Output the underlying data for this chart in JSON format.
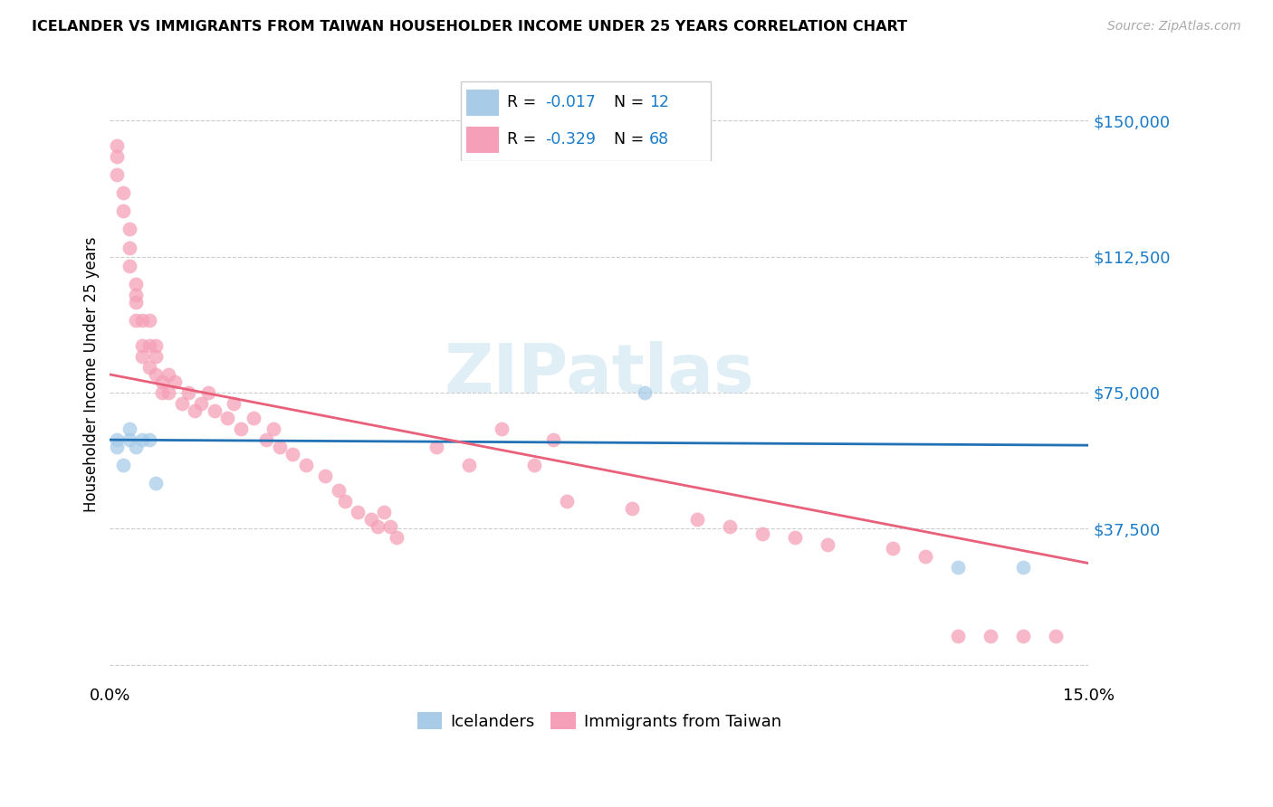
{
  "title": "ICELANDER VS IMMIGRANTS FROM TAIWAN HOUSEHOLDER INCOME UNDER 25 YEARS CORRELATION CHART",
  "source": "Source: ZipAtlas.com",
  "ylabel": "Householder Income Under 25 years",
  "blue_color": "#a8cce8",
  "pink_color": "#f5a0b8",
  "blue_line_color": "#2171b5",
  "pink_line_color": "#e8607a",
  "xlim": [
    0.0,
    0.15
  ],
  "ylim": [
    -5000,
    165000
  ],
  "ytick_values": [
    0,
    37500,
    75000,
    112500,
    150000
  ],
  "ytick_labels": [
    "",
    "$37,500",
    "$75,000",
    "$112,500",
    "$150,000"
  ],
  "background_color": "#ffffff",
  "watermark": "ZIPatlas",
  "blue_line_x0": 0.0,
  "blue_line_y0": 62000,
  "blue_line_x1": 0.15,
  "blue_line_y1": 60500,
  "pink_line_x0": 0.0,
  "pink_line_y0": 80000,
  "pink_line_x1": 0.15,
  "pink_line_y1": 28000,
  "icelanders_x": [
    0.001,
    0.001,
    0.002,
    0.003,
    0.003,
    0.004,
    0.005,
    0.006,
    0.007,
    0.082,
    0.13,
    0.14
  ],
  "icelanders_y": [
    62000,
    60000,
    55000,
    65000,
    62000,
    60000,
    62000,
    62000,
    50000,
    75000,
    27000,
    27000
  ],
  "taiwan_x": [
    0.001,
    0.001,
    0.001,
    0.002,
    0.002,
    0.003,
    0.003,
    0.003,
    0.004,
    0.004,
    0.004,
    0.004,
    0.005,
    0.005,
    0.005,
    0.006,
    0.006,
    0.006,
    0.007,
    0.007,
    0.007,
    0.008,
    0.008,
    0.009,
    0.009,
    0.01,
    0.011,
    0.012,
    0.013,
    0.014,
    0.015,
    0.016,
    0.018,
    0.019,
    0.02,
    0.022,
    0.024,
    0.025,
    0.026,
    0.028,
    0.03,
    0.033,
    0.035,
    0.036,
    0.038,
    0.04,
    0.041,
    0.042,
    0.043,
    0.044,
    0.05,
    0.055,
    0.06,
    0.065,
    0.068,
    0.07,
    0.08,
    0.09,
    0.095,
    0.1,
    0.105,
    0.11,
    0.12,
    0.125,
    0.13,
    0.135,
    0.14,
    0.145
  ],
  "taiwan_y": [
    143000,
    140000,
    135000,
    130000,
    125000,
    120000,
    115000,
    110000,
    105000,
    102000,
    100000,
    95000,
    95000,
    88000,
    85000,
    95000,
    88000,
    82000,
    88000,
    85000,
    80000,
    78000,
    75000,
    80000,
    75000,
    78000,
    72000,
    75000,
    70000,
    72000,
    75000,
    70000,
    68000,
    72000,
    65000,
    68000,
    62000,
    65000,
    60000,
    58000,
    55000,
    52000,
    48000,
    45000,
    42000,
    40000,
    38000,
    42000,
    38000,
    35000,
    60000,
    55000,
    65000,
    55000,
    62000,
    45000,
    43000,
    40000,
    38000,
    36000,
    35000,
    33000,
    32000,
    30000,
    8000,
    8000,
    8000,
    8000
  ]
}
